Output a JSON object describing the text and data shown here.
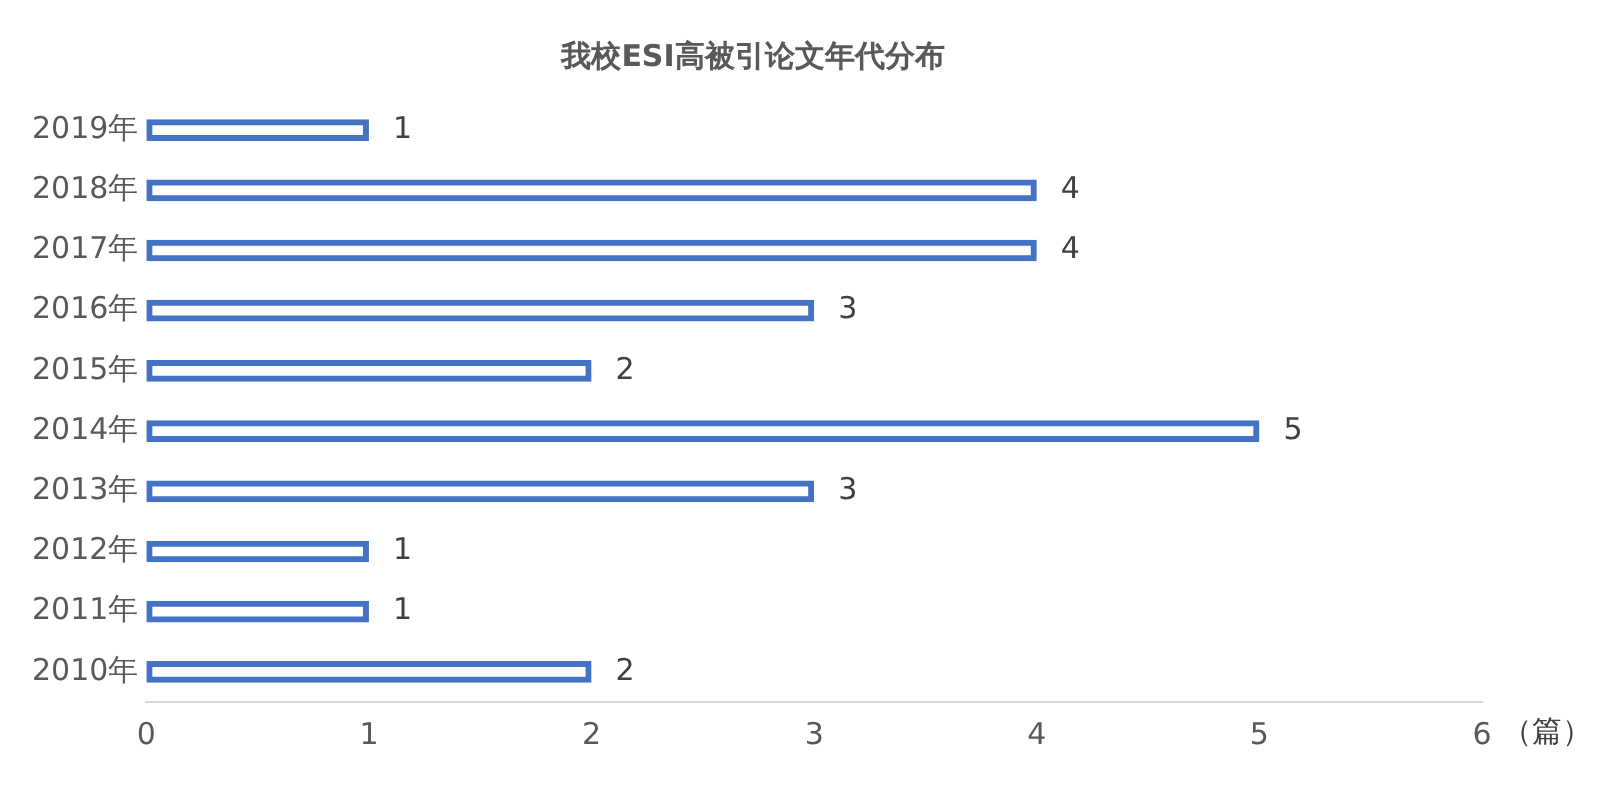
{
  "chart_data": {
    "type": "bar",
    "orientation": "horizontal",
    "title": "我校ESI高被引论文年代分布",
    "xlabel": "（篇）",
    "categories": [
      "2019年",
      "2018年",
      "2017年",
      "2016年",
      "2015年",
      "2014年",
      "2013年",
      "2012年",
      "2011年",
      "2010年"
    ],
    "values": [
      1,
      4,
      4,
      3,
      2,
      5,
      3,
      1,
      1,
      2
    ],
    "color": "#4472c4",
    "xlim": [
      0,
      6
    ],
    "xticks": [
      0,
      1,
      2,
      3,
      4,
      5,
      6
    ],
    "grid": false,
    "legend": false,
    "data_labels": true
  }
}
